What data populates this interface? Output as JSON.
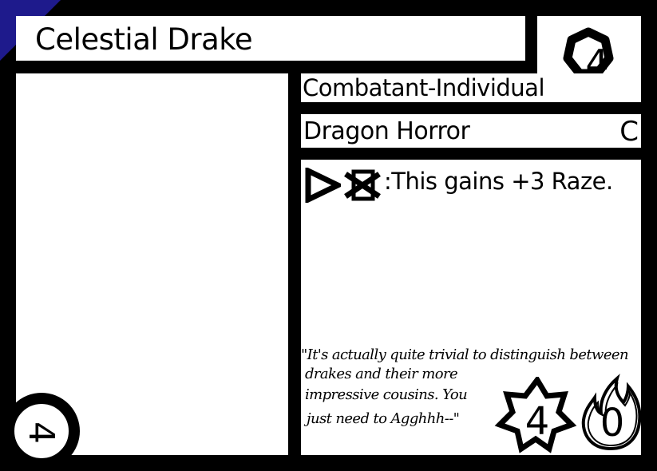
{
  "card": {
    "name": "Celestial Drake",
    "cost": "4",
    "card_type": "Combatant-Individual",
    "subtypes": "Dragon Horror",
    "rarity": "C",
    "ability_icons": [
      "play-arrow-icon",
      "crossed-square-icon"
    ],
    "ability_text": ":This gains +3 Raze.",
    "flavor_lines": [
      "\"It's actually quite trivial to distinguish between",
      "drakes and their more",
      "impressive cousins. You",
      "just need to Agghhh--\""
    ],
    "power": "4",
    "raze": "0",
    "corner_value": "4",
    "accent_color": "#1e1a8c"
  }
}
